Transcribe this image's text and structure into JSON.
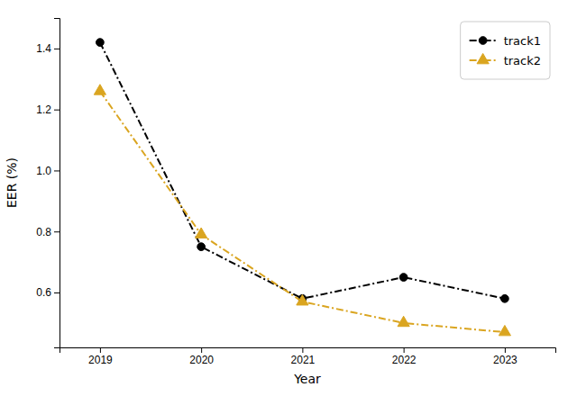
{
  "chart_data": {
    "type": "line",
    "xlabel": "Year",
    "ylabel": "EER (%)",
    "x": [
      2019,
      2020,
      2021,
      2022,
      2023
    ],
    "series": [
      {
        "name": "track1",
        "color": "#000000",
        "values": [
          1.42,
          0.75,
          0.58,
          0.65,
          0.58
        ],
        "marker": "circle",
        "line_style": "dashdot"
      },
      {
        "name": "track2",
        "color": "#DAA520",
        "values": [
          1.26,
          0.79,
          0.57,
          0.5,
          0.47
        ],
        "marker": "triangle",
        "line_style": "dashdot"
      }
    ],
    "xlim": [
      2018.6,
      2023.5
    ],
    "ylim": [
      0.42,
      1.5
    ],
    "xticks": [
      2019,
      2020,
      2021,
      2022,
      2023
    ],
    "yticks": [
      0.6,
      0.8,
      {
        "value": 1.0,
        "label": "1.0"
      },
      1.2,
      1.4
    ],
    "grid": false,
    "legend": "upper right"
  }
}
